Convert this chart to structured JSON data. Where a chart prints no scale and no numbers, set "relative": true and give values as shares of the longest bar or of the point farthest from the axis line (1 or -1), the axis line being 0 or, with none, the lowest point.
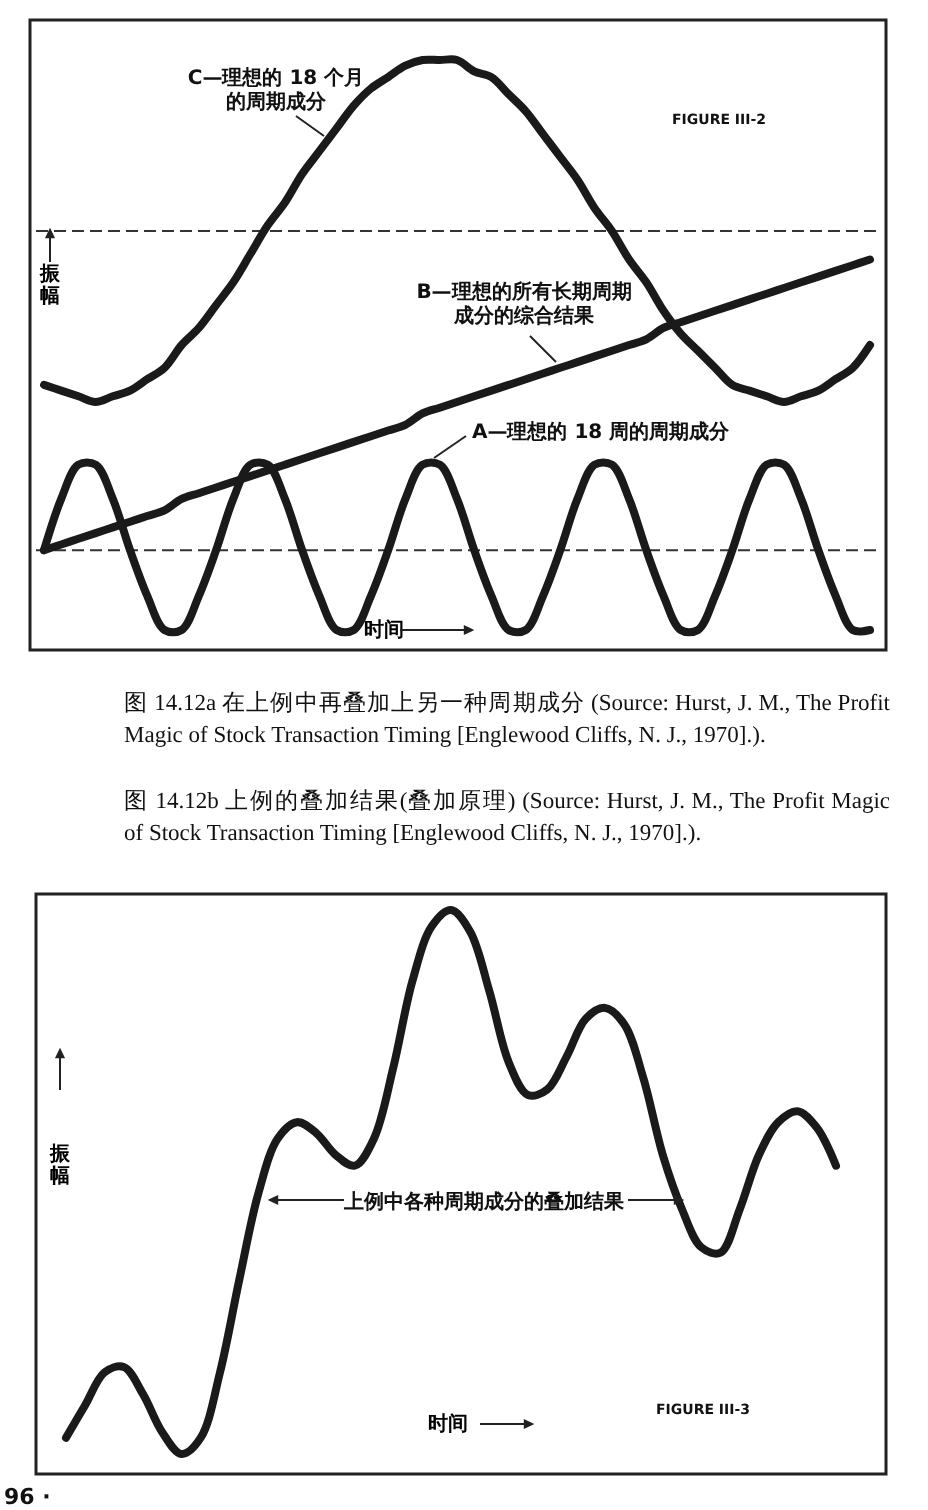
{
  "chart_data": [
    {
      "type": "line",
      "relative": true,
      "tick_labels": false,
      "line_style": "solid",
      "xlabel": "时间",
      "ylabel": "振幅",
      "categories": [
        null,
        null,
        null,
        null,
        null,
        null,
        null,
        null,
        null,
        null,
        null,
        null,
        null,
        null,
        null,
        null,
        null,
        null,
        null,
        null,
        null,
        null,
        null,
        null,
        null,
        null,
        null,
        null,
        null,
        null,
        null,
        null,
        null,
        null,
        null,
        null,
        null,
        null,
        null,
        null,
        null,
        null,
        null,
        null,
        null,
        null,
        null,
        null,
        null
      ],
      "ref_lines": [
        {
          "axis": "y",
          "value": 0.7,
          "line_style": "dashed",
          "color": "#333333"
        },
        {
          "axis": "y",
          "value": 0.14,
          "line_style": "dashed",
          "color": "#333333"
        }
      ],
      "series": [
        {
          "name": "C—理想的 18 个月的周期成分",
          "color": "#1a1a1a",
          "values": [
            0.43,
            0.42,
            0.41,
            0.4,
            0.41,
            0.42,
            0.44,
            0.46,
            0.5,
            0.53,
            0.57,
            0.61,
            0.66,
            0.71,
            0.75,
            0.8,
            0.84,
            0.88,
            0.92,
            0.95,
            0.97,
            0.99,
            1.0,
            1.0,
            1.0,
            0.98,
            0.97,
            0.94,
            0.91,
            0.87,
            0.83,
            0.79,
            0.74,
            0.7,
            0.65,
            0.61,
            0.56,
            0.52,
            0.49,
            0.46,
            0.43,
            0.42,
            0.41,
            0.4,
            0.41,
            0.42,
            0.44,
            0.46,
            0.5
          ]
        },
        {
          "name": "B—理想的所有长期周期成分的综合结果",
          "color": "#1a1a1a",
          "values": [
            0.14,
            0.15,
            0.16,
            0.17,
            0.18,
            0.19,
            0.2,
            0.21,
            0.23,
            0.24,
            0.25,
            0.26,
            0.27,
            0.28,
            0.29,
            0.3,
            0.31,
            0.32,
            0.33,
            0.34,
            0.35,
            0.36,
            0.38,
            0.39,
            0.4,
            0.41,
            0.42,
            0.43,
            0.44,
            0.45,
            0.46,
            0.47,
            0.48,
            0.49,
            0.5,
            0.51,
            0.53,
            0.54,
            0.55,
            0.56,
            0.57,
            0.58,
            0.59,
            0.6,
            0.61,
            0.62,
            0.63,
            0.64,
            0.65
          ]
        },
        {
          "name": "A—理想的 18 周的周期成分",
          "color": "#1a1a1a",
          "values": [
            0.14,
            0.23,
            0.29,
            0.29,
            0.23,
            0.14,
            0.06,
            0,
            0,
            0.06,
            0.14,
            0.23,
            0.29,
            0.29,
            0.23,
            0.14,
            0.06,
            0,
            0,
            0.06,
            0.14,
            0.23,
            0.29,
            0.29,
            0.23,
            0.14,
            0.06,
            0,
            0,
            0.06,
            0.14,
            0.23,
            0.29,
            0.29,
            0.23,
            0.14,
            0.06,
            0,
            0,
            0.06,
            0.14,
            0.23,
            0.29,
            0.29,
            0.23,
            0.14,
            0.06,
            0,
            0
          ]
        }
      ],
      "annotations": [
        "FIGURE III-2",
        "图 14.12a 在上例中再叠加上另一种周期成分 (Source: Hurst, J. M., The Profit Magic of Stock Transaction Timing [Englewood Cliffs, N. J., 1970].)."
      ]
    },
    {
      "type": "line",
      "relative": true,
      "tick_labels": false,
      "line_style": "solid",
      "xlabel": "时间",
      "ylabel": "振幅",
      "categories": [
        null,
        null,
        null,
        null,
        null,
        null,
        null,
        null,
        null,
        null,
        null,
        null,
        null,
        null,
        null,
        null,
        null,
        null,
        null,
        null,
        null,
        null,
        null,
        null,
        null,
        null,
        null,
        null,
        null,
        null,
        null,
        null,
        null,
        null,
        null,
        null,
        null,
        null,
        null,
        null,
        null
      ],
      "series": [
        {
          "name": "上例中各种周期成分的叠加结果",
          "color": "#1a1a1a",
          "values": [
            0.03,
            0.09,
            0.15,
            0.16,
            0.11,
            0.04,
            0,
            0.03,
            0.15,
            0.32,
            0.48,
            0.58,
            0.61,
            0.59,
            0.55,
            0.53,
            0.58,
            0.71,
            0.87,
            0.97,
            1,
            0.96,
            0.85,
            0.72,
            0.66,
            0.67,
            0.73,
            0.8,
            0.82,
            0.79,
            0.69,
            0.55,
            0.45,
            0.38,
            0.37,
            0.45,
            0.55,
            0.61,
            0.63,
            0.6,
            0.53
          ]
        }
      ],
      "annotations": [
        "FIGURE III-3",
        "图 14.12b 上例的叠加结果(叠加原理) (Source: Hurst, J. M., The Profit Magic of Stock Transaction Timing [Englewood Cliffs, N. J., 1970].).",
        "96 ·"
      ]
    }
  ]
}
